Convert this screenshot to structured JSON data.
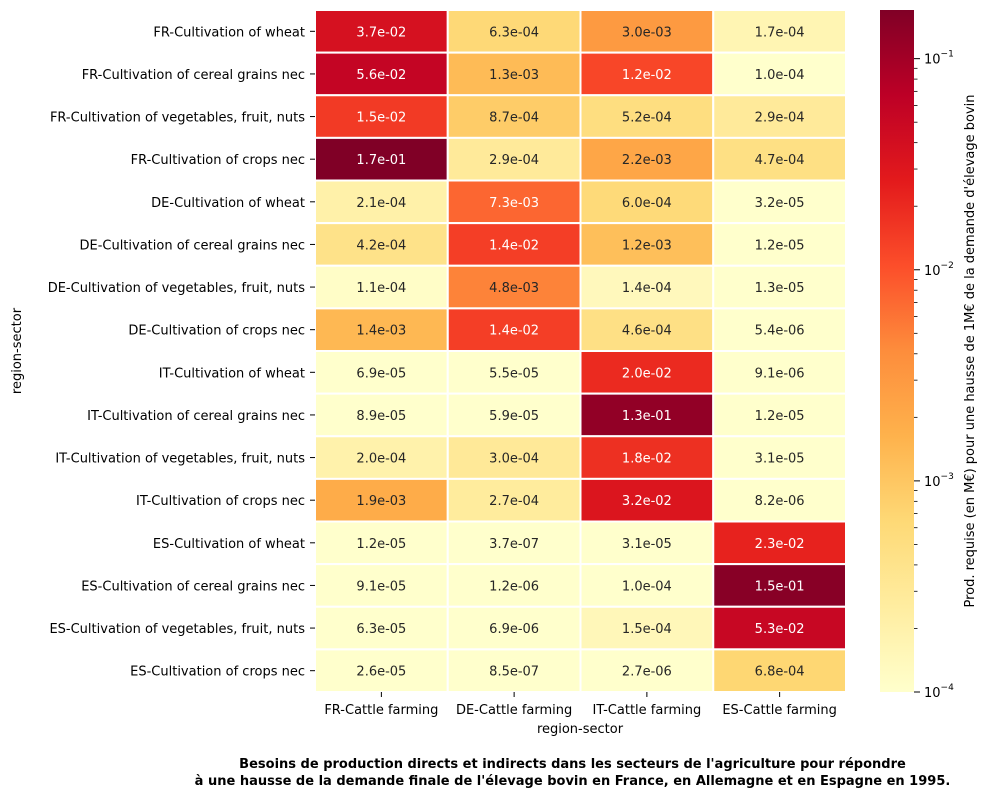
{
  "chart_data": {
    "type": "heatmap",
    "rows": [
      "FR-Cultivation of wheat",
      "FR-Cultivation of cereal grains nec",
      "FR-Cultivation of vegetables, fruit, nuts",
      "FR-Cultivation of crops nec",
      "DE-Cultivation of wheat",
      "DE-Cultivation of cereal grains nec",
      "DE-Cultivation of vegetables, fruit, nuts",
      "DE-Cultivation of crops nec",
      "IT-Cultivation of wheat",
      "IT-Cultivation of cereal grains nec",
      "IT-Cultivation of vegetables, fruit, nuts",
      "IT-Cultivation of crops nec",
      "ES-Cultivation of wheat",
      "ES-Cultivation of cereal grains nec",
      "ES-Cultivation of vegetables, fruit, nuts",
      "ES-Cultivation of crops nec"
    ],
    "columns": [
      "FR-Cattle farming",
      "DE-Cattle farming",
      "IT-Cattle farming",
      "ES-Cattle farming"
    ],
    "values": [
      [
        0.037,
        0.00063,
        0.003,
        0.00017
      ],
      [
        0.056,
        0.0013,
        0.012,
        0.0001
      ],
      [
        0.015,
        0.00087,
        0.00052,
        0.00029
      ],
      [
        0.17,
        0.00029,
        0.0022,
        0.00047
      ],
      [
        0.00021,
        0.0073,
        0.0006,
        3.2e-05
      ],
      [
        0.00042,
        0.014,
        0.0012,
        1.2e-05
      ],
      [
        0.00011,
        0.0048,
        0.00014,
        1.3e-05
      ],
      [
        0.0014,
        0.014,
        0.00046,
        5.4e-06
      ],
      [
        6.9e-05,
        5.5e-05,
        0.02,
        9.1e-06
      ],
      [
        8.9e-05,
        5.9e-05,
        0.13,
        1.2e-05
      ],
      [
        0.0002,
        0.0003,
        0.018,
        3.1e-05
      ],
      [
        0.0019,
        0.00027,
        0.032,
        8.2e-06
      ],
      [
        1.2e-05,
        3.7e-07,
        3.1e-05,
        0.023
      ],
      [
        9.1e-05,
        1.2e-06,
        0.0001,
        0.15
      ],
      [
        6.3e-05,
        6.9e-06,
        0.00015,
        0.053
      ],
      [
        2.6e-05,
        8.5e-07,
        2.7e-06,
        0.00068
      ]
    ],
    "cell_labels": [
      [
        "3.7e-02",
        "6.3e-04",
        "3.0e-03",
        "1.7e-04"
      ],
      [
        "5.6e-02",
        "1.3e-03",
        "1.2e-02",
        "1.0e-04"
      ],
      [
        "1.5e-02",
        "8.7e-04",
        "5.2e-04",
        "2.9e-04"
      ],
      [
        "1.7e-01",
        "2.9e-04",
        "2.2e-03",
        "4.7e-04"
      ],
      [
        "2.1e-04",
        "7.3e-03",
        "6.0e-04",
        "3.2e-05"
      ],
      [
        "4.2e-04",
        "1.4e-02",
        "1.2e-03",
        "1.2e-05"
      ],
      [
        "1.1e-04",
        "4.8e-03",
        "1.4e-04",
        "1.3e-05"
      ],
      [
        "1.4e-03",
        "1.4e-02",
        "4.6e-04",
        "5.4e-06"
      ],
      [
        "6.9e-05",
        "5.5e-05",
        "2.0e-02",
        "9.1e-06"
      ],
      [
        "8.9e-05",
        "5.9e-05",
        "1.3e-01",
        "1.2e-05"
      ],
      [
        "2.0e-04",
        "3.0e-04",
        "1.8e-02",
        "3.1e-05"
      ],
      [
        "1.9e-03",
        "2.7e-04",
        "3.2e-02",
        "8.2e-06"
      ],
      [
        "1.2e-05",
        "3.7e-07",
        "3.1e-05",
        "2.3e-02"
      ],
      [
        "9.1e-05",
        "1.2e-06",
        "1.0e-04",
        "1.5e-01"
      ],
      [
        "6.3e-05",
        "6.9e-06",
        "1.5e-04",
        "5.3e-02"
      ],
      [
        "2.6e-05",
        "8.5e-07",
        "2.7e-06",
        "6.8e-04"
      ]
    ],
    "xlabel": "region-sector",
    "ylabel": "region-sector",
    "colorbar": {
      "label": "Prod. requise (en M€) pour une hausse de 1M€ de la demande d'élevage bovin",
      "scale": "log",
      "range": [
        0.0001,
        0.17
      ],
      "colormap": "YlOrRd",
      "ticks": [
        {
          "value": 0.0001,
          "base": "10",
          "exp": "−4"
        },
        {
          "value": 0.001,
          "base": "10",
          "exp": "−3"
        },
        {
          "value": 0.01,
          "base": "10",
          "exp": "−2"
        },
        {
          "value": 0.1,
          "base": "10",
          "exp": "−1"
        }
      ]
    },
    "caption_lines": [
      "Besoins de production directs et indirects dans les secteurs de l'agriculture pour répondre",
      "à une hausse de la demande finale de l'élevage bovin en France, en Allemagne et en Espagne en 1995."
    ]
  }
}
